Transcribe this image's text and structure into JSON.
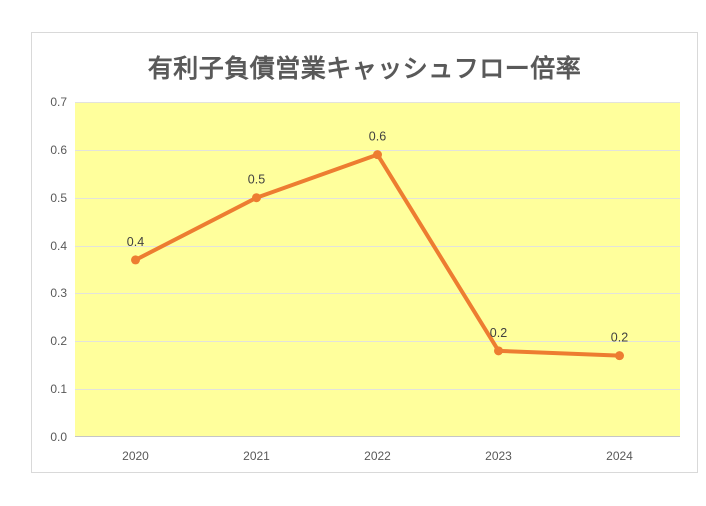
{
  "chart_data": {
    "type": "line",
    "title": "有利子負債営業キャッシュフロー倍率",
    "categories": [
      "2020",
      "2021",
      "2022",
      "2023",
      "2024"
    ],
    "values": [
      0.37,
      0.5,
      0.59,
      0.18,
      0.17
    ],
    "point_labels": [
      "0.4",
      "0.5",
      "0.6",
      "0.2",
      "0.2"
    ],
    "yticks": [
      "0.0",
      "0.1",
      "0.2",
      "0.3",
      "0.4",
      "0.5",
      "0.6",
      "0.7"
    ],
    "ytick_step": 0.1,
    "ylim": [
      0,
      0.7
    ],
    "xlabel": "",
    "ylabel": "",
    "grid": true,
    "legend": "none",
    "colors": {
      "line": "#ED7D31",
      "marker": "#ED7D31",
      "plot_background": "#FFFF9C",
      "gridline": "#E3E3DC",
      "axis_line": "#C6C6C6",
      "frame_border": "#D9D9D9",
      "title_text": "#595959",
      "tick_text": "#595959",
      "data_label_text": "#404040",
      "page_background": "#FFFFFF"
    }
  }
}
